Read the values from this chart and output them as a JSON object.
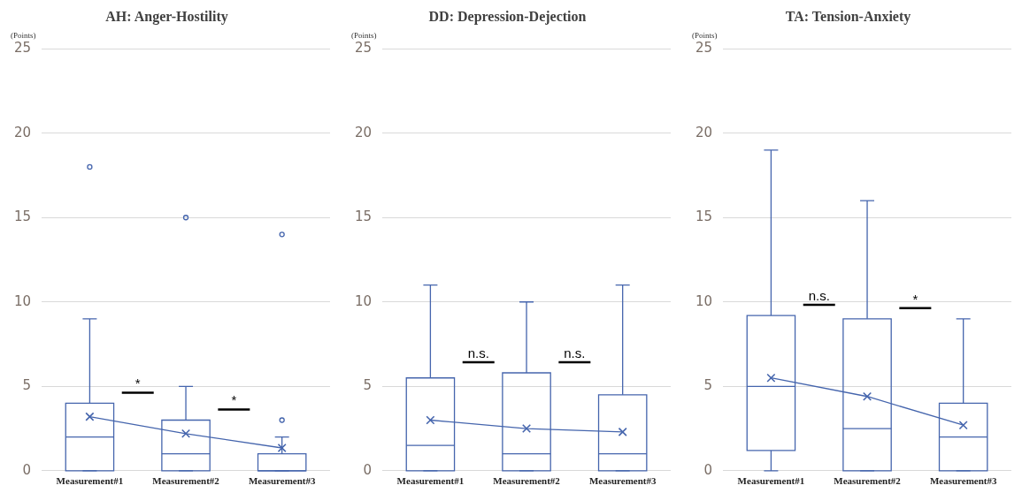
{
  "chart_data": [
    {
      "type": "box",
      "title": "AH: Anger-Hostility",
      "ylabel": "(Points)",
      "categories": [
        "Measurement#1",
        "Measurement#2",
        "Measurement#3"
      ],
      "ylim": [
        0,
        25
      ],
      "yticks": [
        0,
        5,
        10,
        15,
        20,
        25
      ],
      "grid": "y",
      "marker": "cross",
      "annotations": [
        "*",
        "*"
      ],
      "series": [
        {
          "color": "#4565ad",
          "boxes": [
            {
              "low": 0,
              "q1": 0,
              "median": 2,
              "q3": 4,
              "high": 9,
              "outliers": [
                18
              ]
            },
            {
              "low": 0,
              "q1": 0,
              "median": 1,
              "q3": 3,
              "high": 5,
              "outliers": [
                15
              ]
            },
            {
              "low": 0,
              "q1": 0,
              "median": 0,
              "q3": 1,
              "high": 2,
              "outliers": [
                3,
                14
              ]
            }
          ]
        },
        {
          "type": "line",
          "color": "#4565ad",
          "values": [
            3.2,
            2.2,
            1.35
          ]
        }
      ]
    },
    {
      "type": "box",
      "title": "DD: Depression-Dejection",
      "ylabel": "(Points)",
      "categories": [
        "Measurement#1",
        "Measurement#2",
        "Measurement#3"
      ],
      "ylim": [
        0,
        25
      ],
      "yticks": [
        0,
        5,
        10,
        15,
        20,
        25
      ],
      "grid": "y",
      "marker": "cross",
      "annotations": [
        "n.s.",
        "n.s."
      ],
      "series": [
        {
          "color": "#4565ad",
          "boxes": [
            {
              "low": 0,
              "q1": 0,
              "median": 1.5,
              "q3": 5.5,
              "high": 11
            },
            {
              "low": 0,
              "q1": 0,
              "median": 1,
              "q3": 5.8,
              "high": 10
            },
            {
              "low": 0,
              "q1": 0,
              "median": 1,
              "q3": 4.5,
              "high": 11
            }
          ]
        },
        {
          "type": "line",
          "color": "#4565ad",
          "values": [
            3.0,
            2.5,
            2.3
          ]
        }
      ]
    },
    {
      "type": "box",
      "title": "TA: Tension-Anxiety",
      "ylabel": "(Points)",
      "categories": [
        "Measurement#1",
        "Measurement#2",
        "Measurement#3"
      ],
      "ylim": [
        0,
        25
      ],
      "yticks": [
        0,
        5,
        10,
        15,
        20,
        25
      ],
      "grid": "y",
      "marker": "cross",
      "annotations": [
        "n.s.",
        "*"
      ],
      "series": [
        {
          "color": "#4565ad",
          "boxes": [
            {
              "low": 0,
              "q1": 1.2,
              "median": 5,
              "q3": 9.2,
              "high": 19
            },
            {
              "low": 0,
              "q1": 0,
              "median": 2.5,
              "q3": 9,
              "high": 16
            },
            {
              "low": 0,
              "q1": 0,
              "median": 2,
              "q3": 4,
              "high": 9
            }
          ]
        },
        {
          "type": "line",
          "color": "#4565ad",
          "values": [
            5.5,
            4.4,
            2.7
          ]
        }
      ]
    }
  ]
}
